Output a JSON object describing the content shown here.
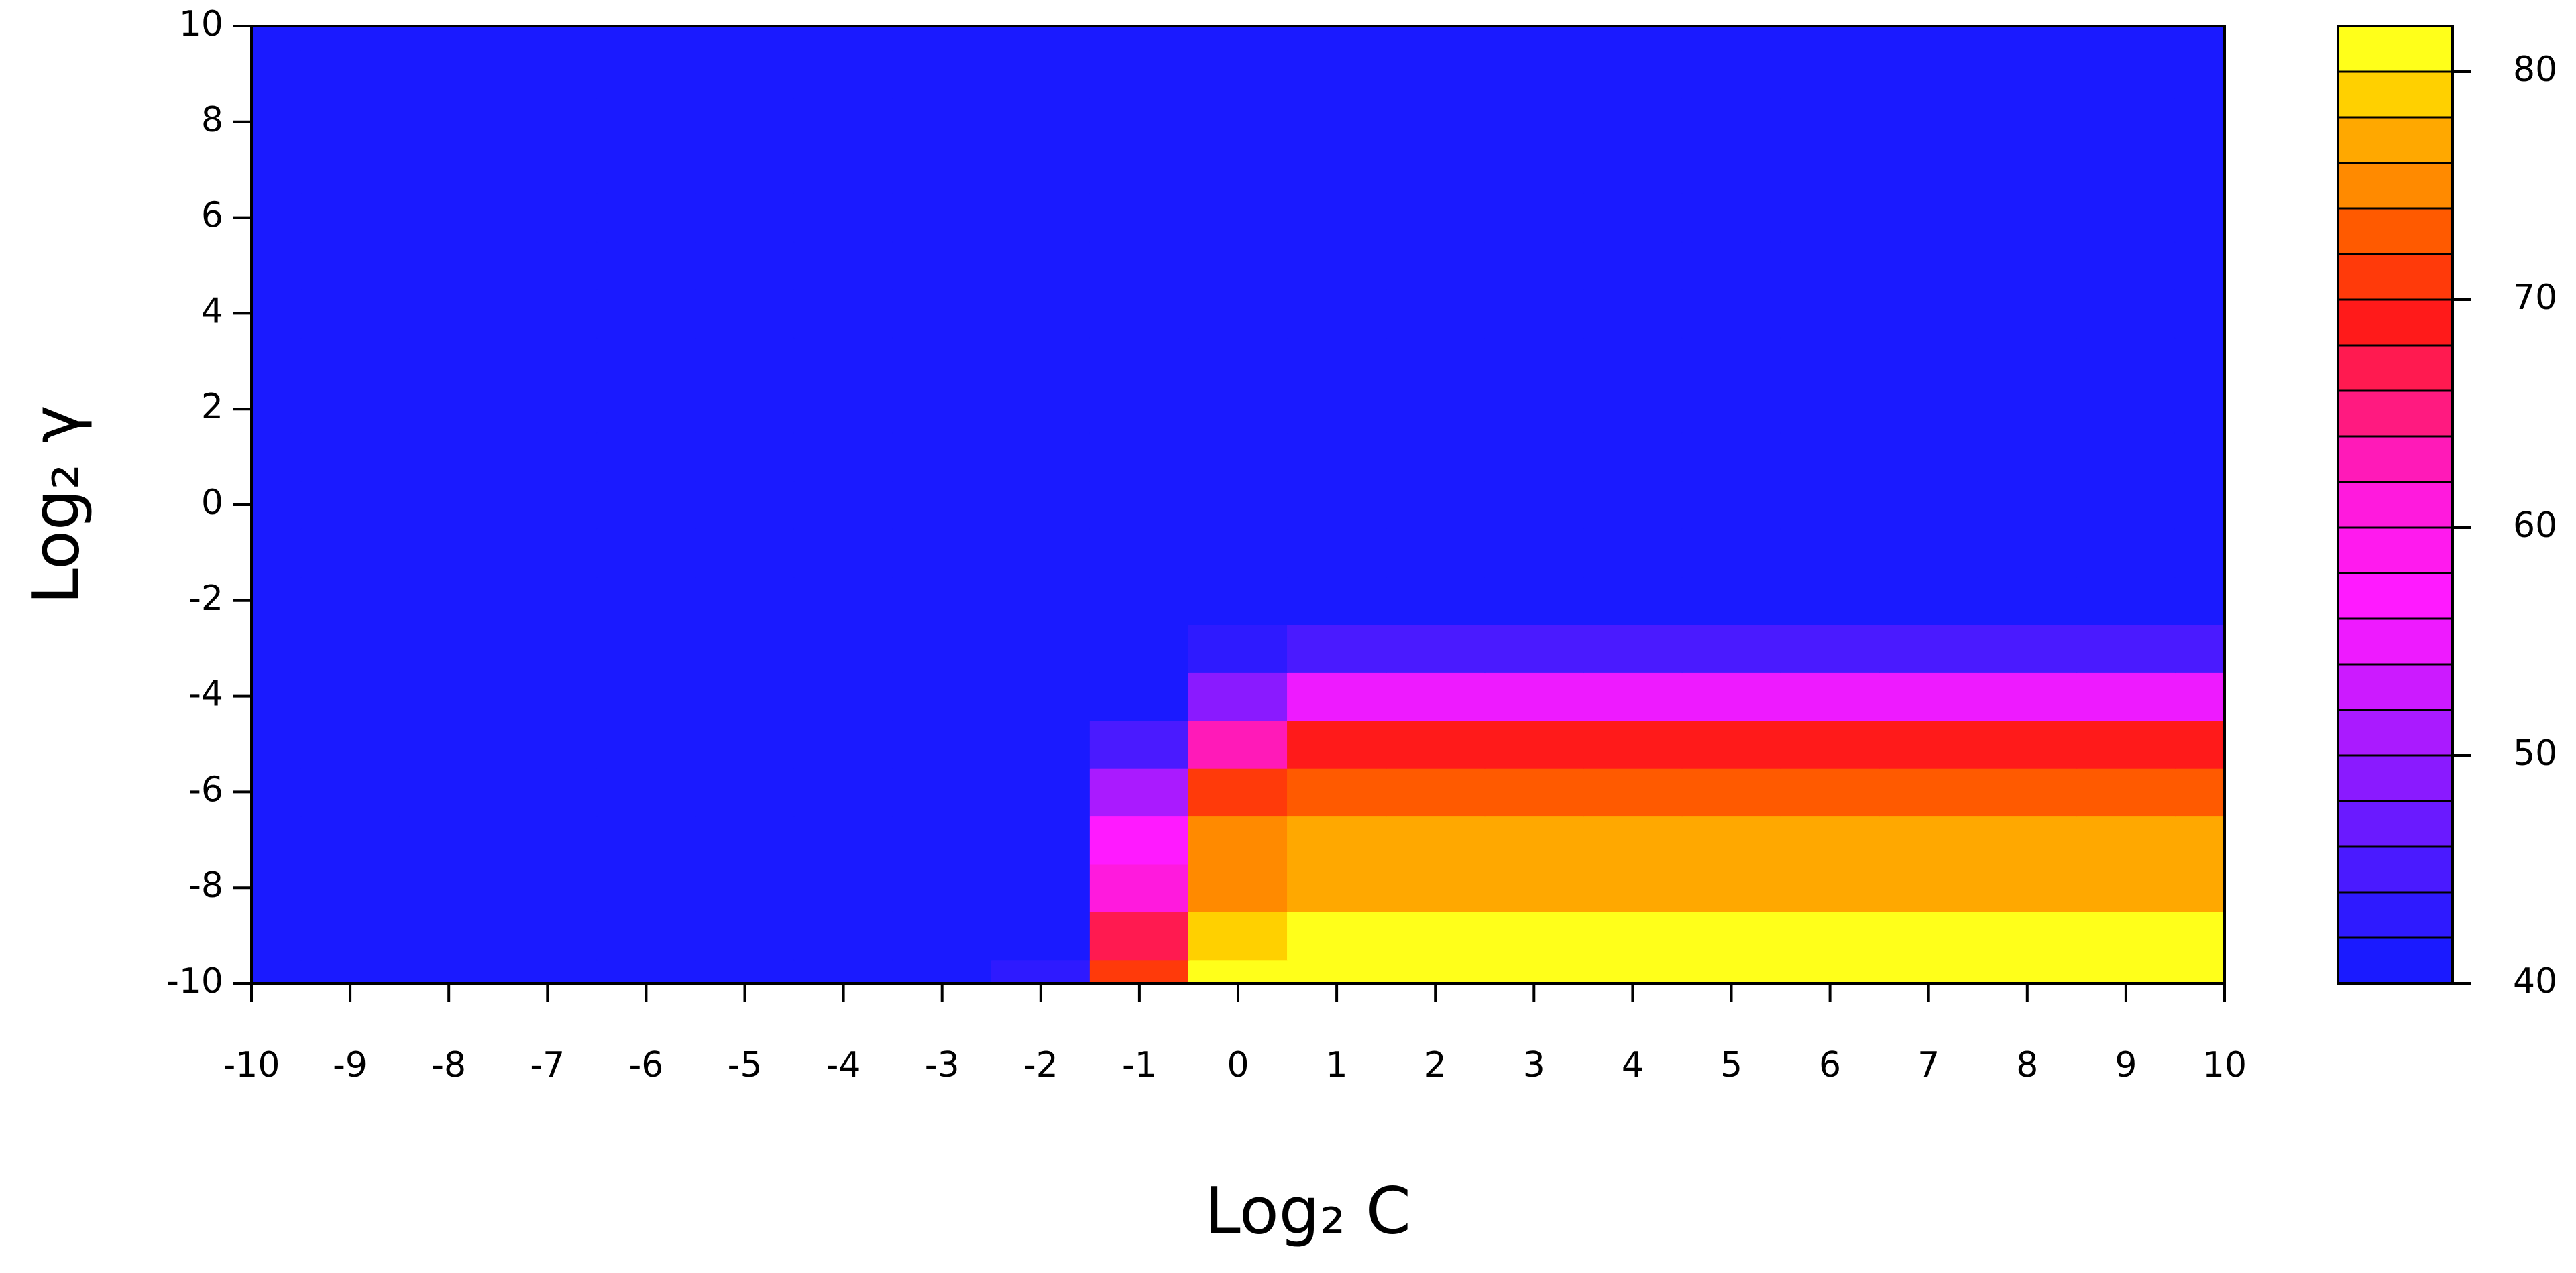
{
  "chart_data": {
    "type": "contour",
    "x_label": "Log₂ C",
    "y_label": "Log₂ γ",
    "x": [
      -10,
      -9,
      -8,
      -7,
      -6,
      -5,
      -4,
      -3,
      -2,
      -1,
      0,
      1,
      2,
      3,
      4,
      5,
      6,
      7,
      8,
      9,
      10
    ],
    "y": [
      -10,
      -9,
      -8,
      -7,
      -6,
      -5,
      -4,
      -3,
      -2,
      -1,
      0,
      1,
      2,
      3,
      4,
      5,
      6,
      7,
      8,
      9,
      10
    ],
    "z": [
      [
        40,
        40,
        40,
        40,
        40,
        40,
        40,
        40,
        42,
        70,
        80,
        81,
        81,
        81,
        81,
        81,
        81,
        81,
        81,
        81,
        81
      ],
      [
        40,
        40,
        40,
        40,
        40,
        40,
        40,
        40,
        40,
        66,
        79,
        80,
        80,
        80,
        80,
        80,
        80,
        80,
        80,
        80,
        80
      ],
      [
        40,
        40,
        40,
        40,
        40,
        40,
        40,
        40,
        40,
        60,
        75,
        77,
        77,
        77,
        77,
        77,
        77,
        77,
        77,
        77,
        77
      ],
      [
        40,
        40,
        40,
        40,
        40,
        40,
        40,
        40,
        40,
        56,
        74,
        76,
        76,
        76,
        76,
        76,
        76,
        76,
        76,
        76,
        76
      ],
      [
        40,
        40,
        40,
        40,
        40,
        40,
        40,
        40,
        40,
        50,
        70,
        72,
        72,
        72,
        72,
        72,
        72,
        72,
        72,
        72,
        72
      ],
      [
        40,
        40,
        40,
        40,
        40,
        40,
        40,
        40,
        40,
        44,
        62,
        68,
        68,
        68,
        68,
        68,
        68,
        68,
        68,
        68,
        68
      ],
      [
        40,
        40,
        40,
        40,
        40,
        40,
        40,
        40,
        40,
        40,
        48,
        55,
        55,
        55,
        55,
        55,
        55,
        55,
        55,
        55,
        55
      ],
      [
        40,
        40,
        40,
        40,
        40,
        40,
        40,
        40,
        40,
        40,
        42,
        44,
        44,
        44,
        44,
        44,
        44,
        44,
        44,
        44,
        44
      ],
      [
        40,
        40,
        40,
        40,
        40,
        40,
        40,
        40,
        40,
        40,
        40,
        40,
        40,
        40,
        40,
        40,
        40,
        40,
        40,
        40,
        40
      ],
      [
        40,
        40,
        40,
        40,
        40,
        40,
        40,
        40,
        40,
        40,
        40,
        40,
        40,
        40,
        40,
        40,
        40,
        40,
        40,
        40,
        40
      ],
      [
        40,
        40,
        40,
        40,
        40,
        40,
        40,
        40,
        40,
        40,
        40,
        40,
        40,
        40,
        40,
        40,
        40,
        40,
        40,
        40,
        40
      ],
      [
        40,
        40,
        40,
        40,
        40,
        40,
        40,
        40,
        40,
        40,
        40,
        40,
        40,
        40,
        40,
        40,
        40,
        40,
        40,
        40,
        40
      ],
      [
        40,
        40,
        40,
        40,
        40,
        40,
        40,
        40,
        40,
        40,
        40,
        40,
        40,
        40,
        40,
        40,
        40,
        40,
        40,
        40,
        40
      ],
      [
        40,
        40,
        40,
        40,
        40,
        40,
        40,
        40,
        40,
        40,
        40,
        40,
        40,
        40,
        40,
        40,
        40,
        40,
        40,
        40,
        40
      ],
      [
        40,
        40,
        40,
        40,
        40,
        40,
        40,
        40,
        40,
        40,
        40,
        40,
        40,
        40,
        40,
        40,
        40,
        40,
        40,
        40,
        40
      ],
      [
        40,
        40,
        40,
        40,
        40,
        40,
        40,
        40,
        40,
        40,
        40,
        40,
        40,
        40,
        40,
        40,
        40,
        40,
        40,
        40,
        40
      ],
      [
        40,
        40,
        40,
        40,
        40,
        40,
        40,
        40,
        40,
        40,
        40,
        40,
        40,
        40,
        40,
        40,
        40,
        40,
        40,
        40,
        40
      ],
      [
        40,
        40,
        40,
        40,
        40,
        40,
        40,
        40,
        40,
        40,
        40,
        40,
        40,
        40,
        40,
        40,
        40,
        40,
        40,
        40,
        40
      ],
      [
        40,
        40,
        40,
        40,
        40,
        40,
        40,
        40,
        40,
        40,
        40,
        40,
        40,
        40,
        40,
        40,
        40,
        40,
        40,
        40,
        40
      ],
      [
        40,
        40,
        40,
        40,
        40,
        40,
        40,
        40,
        40,
        40,
        40,
        40,
        40,
        40,
        40,
        40,
        40,
        40,
        40,
        40,
        40
      ],
      [
        40,
        40,
        40,
        40,
        40,
        40,
        40,
        40,
        40,
        40,
        40,
        40,
        40,
        40,
        40,
        40,
        40,
        40,
        40,
        40,
        40
      ]
    ],
    "xlim": [
      -10,
      10
    ],
    "xticks": [
      -10,
      -9,
      -8,
      -7,
      -6,
      -5,
      -4,
      -3,
      -2,
      -1,
      0,
      1,
      2,
      3,
      4,
      5,
      6,
      7,
      8,
      9,
      10
    ],
    "ylim": [
      -10,
      10
    ],
    "yticks": [
      -10,
      -8,
      -6,
      -4,
      -2,
      0,
      2,
      4,
      6,
      8,
      10
    ],
    "levels": [
      40,
      42,
      44,
      46,
      48,
      50,
      52,
      54,
      56,
      58,
      60,
      62,
      64,
      66,
      68,
      70,
      72,
      74,
      76,
      78,
      80,
      82
    ],
    "colors": [
      "#1a1aff",
      "#2e1aff",
      "#4a1aff",
      "#6a1aff",
      "#8a1aff",
      "#aa1aff",
      "#cc1aff",
      "#ee1aff",
      "#ff1aff",
      "#ff1aee",
      "#ff1add",
      "#ff1ab8",
      "#ff1a80",
      "#ff1a50",
      "#ff1a1a",
      "#ff3a0a",
      "#ff5a00",
      "#ff8a00",
      "#ffa800",
      "#ffd000",
      "#ffff1a"
    ],
    "clim": [
      40,
      82
    ],
    "cticks": [
      40,
      50,
      60,
      70,
      80
    ]
  }
}
